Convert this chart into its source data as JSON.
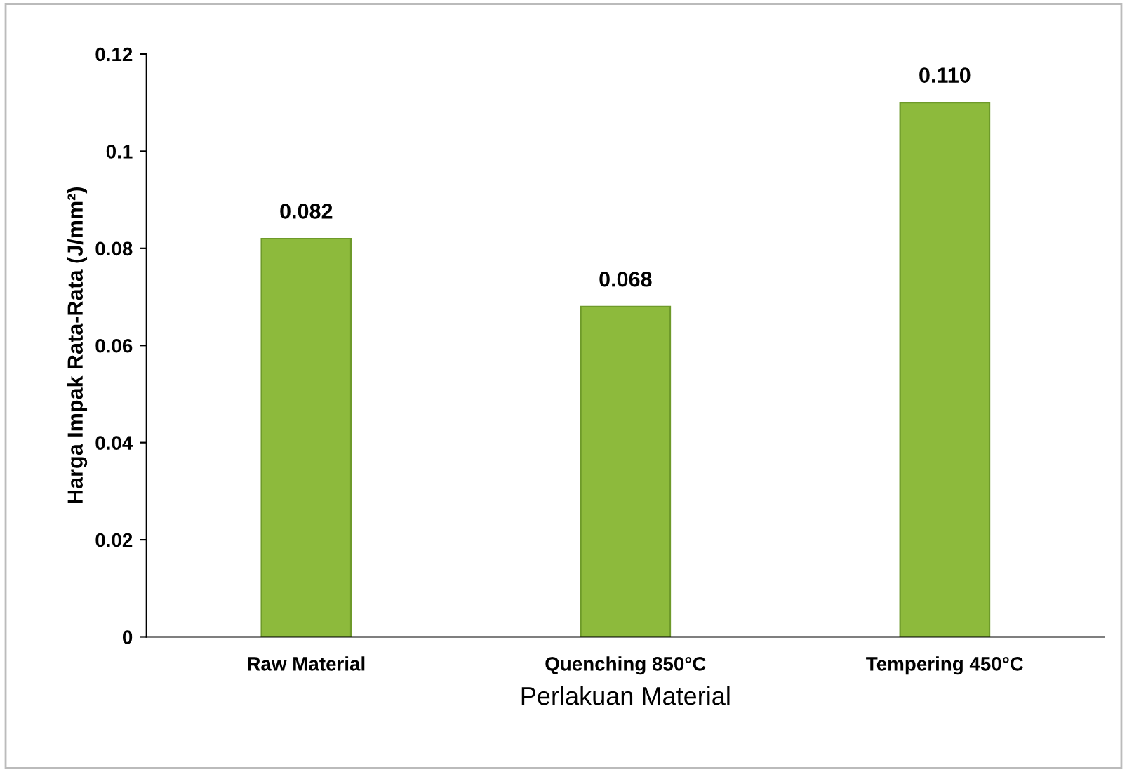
{
  "chart_data": {
    "type": "bar",
    "xlabel": "Perlakuan Material",
    "ylabel": "Harga Impak Rata-Rata (J/mm²)",
    "categories": [
      "Raw Material",
      "Quenching 850°C",
      "Tempering 450°C"
    ],
    "values": [
      0.082,
      0.068,
      0.11
    ],
    "color": "#8dba3c",
    "value_labels": [
      "0.082",
      "0.068",
      "0.110"
    ],
    "ylim": [
      0,
      0.12
    ],
    "yticks": [
      0,
      0.02,
      0.04,
      0.06,
      0.08,
      0.1,
      0.12
    ],
    "grid": false,
    "legend": false
  }
}
